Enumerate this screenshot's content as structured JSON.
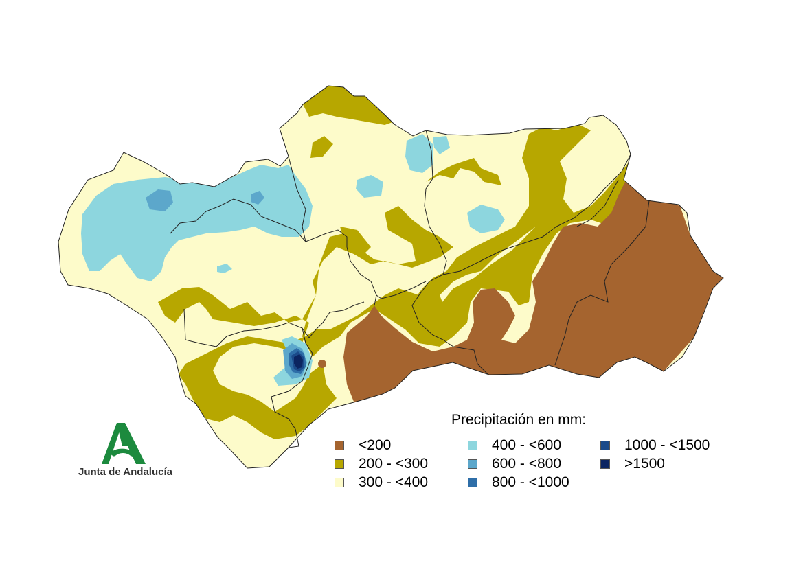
{
  "legend": {
    "title": "Precipitación en mm:",
    "items": [
      {
        "label": "<200",
        "color": "#a5642f"
      },
      {
        "label": "200 - <300",
        "color": "#b7a700"
      },
      {
        "label": "300 - <400",
        "color": "#fdfbca"
      },
      {
        "label": "400 - <600",
        "color": "#8dd6de"
      },
      {
        "label": "600 - <800",
        "color": "#5ca7cb"
      },
      {
        "label": "800 - <1000",
        "color": "#2e6ea8"
      },
      {
        "label": "1000 - <1500",
        "color": "#1b4a8a"
      },
      {
        "label": ">1500",
        "color": "#0b2461"
      }
    ]
  },
  "logo": {
    "text": "Junta de Andalucía",
    "color": "#1c8a3e"
  }
}
